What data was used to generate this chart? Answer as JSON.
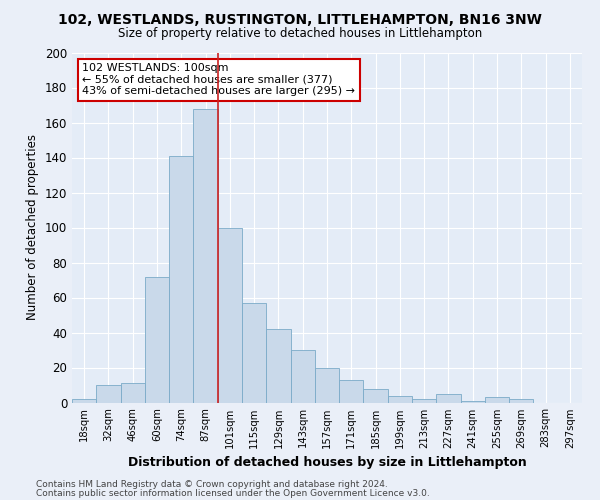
{
  "title1": "102, WESTLANDS, RUSTINGTON, LITTLEHAMPTON, BN16 3NW",
  "title2": "Size of property relative to detached houses in Littlehampton",
  "xlabel": "Distribution of detached houses by size in Littlehampton",
  "ylabel": "Number of detached properties",
  "footnote1": "Contains HM Land Registry data © Crown copyright and database right 2024.",
  "footnote2": "Contains public sector information licensed under the Open Government Licence v3.0.",
  "bar_labels": [
    "18sqm",
    "32sqm",
    "46sqm",
    "60sqm",
    "74sqm",
    "87sqm",
    "101sqm",
    "115sqm",
    "129sqm",
    "143sqm",
    "157sqm",
    "171sqm",
    "185sqm",
    "199sqm",
    "213sqm",
    "227sqm",
    "241sqm",
    "255sqm",
    "269sqm",
    "283sqm",
    "297sqm"
  ],
  "bar_values": [
    2,
    10,
    11,
    72,
    141,
    168,
    100,
    57,
    42,
    30,
    20,
    13,
    8,
    4,
    2,
    5,
    1,
    3,
    2,
    0,
    0
  ],
  "bar_color": "#c9d9ea",
  "bar_edge_color": "#7aaac8",
  "highlight_index": 5,
  "vline_color": "#cc2222",
  "annotation_text": "102 WESTLANDS: 100sqm\n← 55% of detached houses are smaller (377)\n43% of semi-detached houses are larger (295) →",
  "annotation_box_facecolor": "#ffffff",
  "annotation_box_edgecolor": "#cc0000",
  "bg_color": "#eaeff8",
  "plot_bg_color": "#e4ecf7",
  "grid_color": "#ffffff",
  "ylim": [
    0,
    200
  ],
  "yticks": [
    0,
    20,
    40,
    60,
    80,
    100,
    120,
    140,
    160,
    180,
    200
  ]
}
